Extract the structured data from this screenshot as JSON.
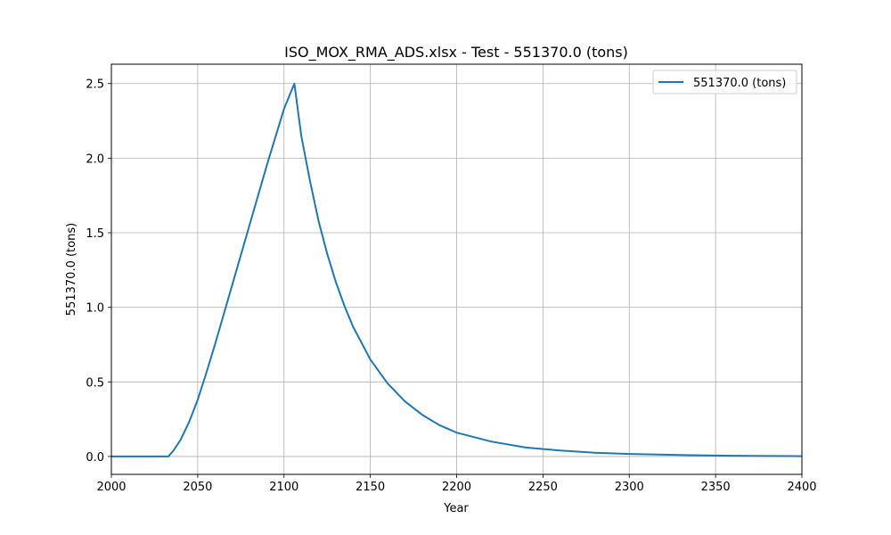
{
  "chart_data": {
    "type": "line",
    "title": "ISO_MOX_RMA_ADS.xlsx - Test - 551370.0 (tons)",
    "xlabel": "Year",
    "ylabel": "551370.0 (tons)",
    "xlim": [
      2000,
      2400
    ],
    "ylim": [
      -0.12,
      2.63
    ],
    "xticks": [
      2000,
      2050,
      2100,
      2150,
      2200,
      2250,
      2300,
      2350,
      2400
    ],
    "xtick_labels": [
      "2000",
      "2050",
      "2100",
      "2150",
      "2200",
      "2250",
      "2300",
      "2350",
      "2400"
    ],
    "yticks": [
      0.0,
      0.5,
      1.0,
      1.5,
      2.0,
      2.5
    ],
    "ytick_labels": [
      "0.0",
      "0.5",
      "1.0",
      "1.5",
      "2.0",
      "2.5"
    ],
    "grid": true,
    "legend_position": "top-right",
    "series": [
      {
        "name": "551370.0 (tons)",
        "color": "#1f77b4",
        "x": [
          2000,
          2033,
          2036,
          2040,
          2045,
          2050,
          2055,
          2060,
          2065,
          2070,
          2075,
          2080,
          2085,
          2090,
          2095,
          2100,
          2106,
          2110,
          2115,
          2120,
          2125,
          2130,
          2135,
          2140,
          2150,
          2160,
          2170,
          2180,
          2190,
          2200,
          2220,
          2240,
          2260,
          2280,
          2300,
          2320,
          2340,
          2360,
          2380,
          2400
        ],
        "values": [
          0.0,
          0.0,
          0.04,
          0.11,
          0.23,
          0.38,
          0.56,
          0.75,
          0.95,
          1.15,
          1.35,
          1.55,
          1.75,
          1.95,
          2.14,
          2.33,
          2.5,
          2.15,
          1.85,
          1.58,
          1.36,
          1.17,
          1.01,
          0.87,
          0.65,
          0.49,
          0.37,
          0.28,
          0.21,
          0.16,
          0.1,
          0.06,
          0.04,
          0.025,
          0.017,
          0.012,
          0.008,
          0.005,
          0.003,
          0.002
        ]
      }
    ]
  }
}
